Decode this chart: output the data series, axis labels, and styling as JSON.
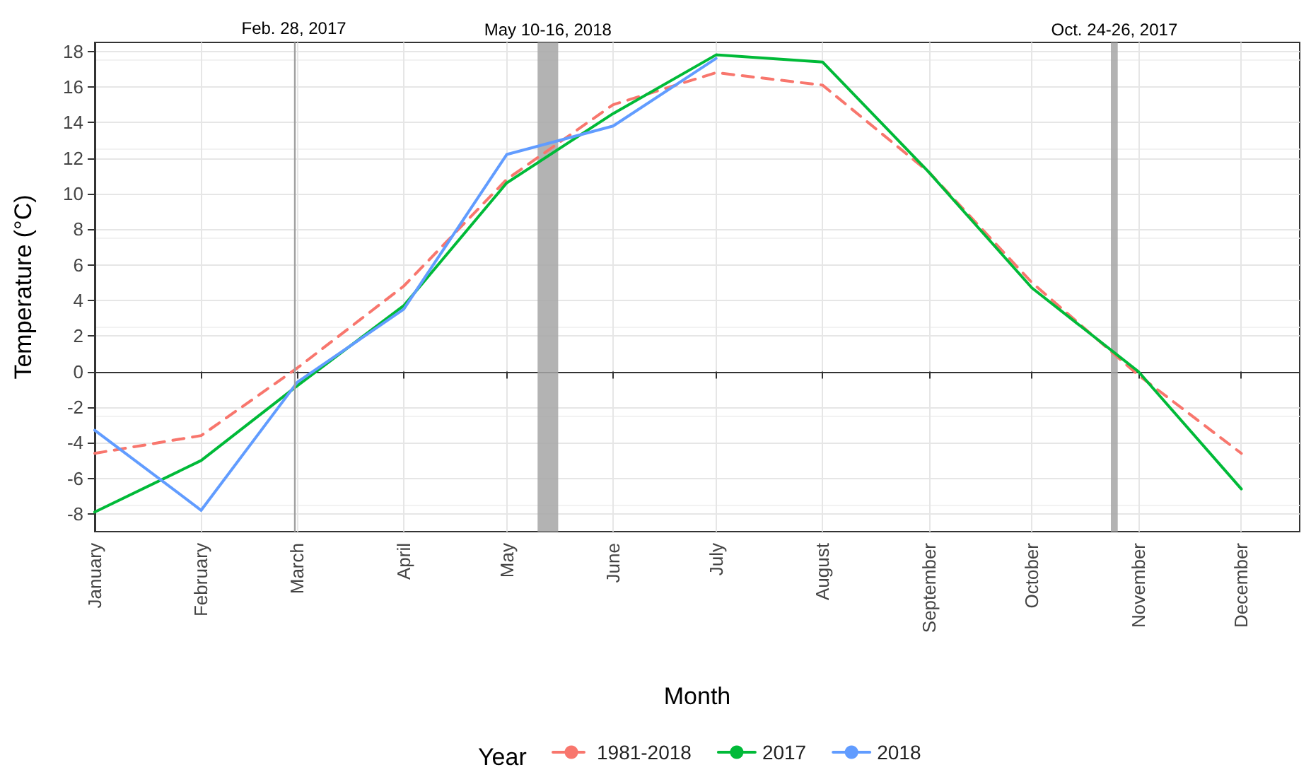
{
  "chart_data": {
    "type": "line",
    "xlabel": "Month",
    "ylabel": "Temperature (°C)",
    "legend_title": "Year",
    "x": [
      "--01-01",
      "--02-01",
      "--03-01",
      "--04-01",
      "--05-01",
      "--06-01",
      "--07-01",
      "--08-01",
      "--09-01",
      "--10-01",
      "--11-01",
      "--12-01"
    ],
    "xlim": [
      "--01-01",
      "--12-18"
    ],
    "xticks": [
      {
        "value": "--01-01",
        "label": "January"
      },
      {
        "value": "--02-01",
        "label": "February"
      },
      {
        "value": "--03-01",
        "label": "March"
      },
      {
        "value": "--04-01",
        "label": "April"
      },
      {
        "value": "--05-01",
        "label": "May"
      },
      {
        "value": "--06-01",
        "label": "June"
      },
      {
        "value": "--07-01",
        "label": "July"
      },
      {
        "value": "--08-01",
        "label": "August"
      },
      {
        "value": "--09-01",
        "label": "September"
      },
      {
        "value": "--10-01",
        "label": "October"
      },
      {
        "value": "--11-01",
        "label": "November"
      },
      {
        "value": "--12-01",
        "label": "December"
      }
    ],
    "ylim": [
      -9,
      18.5
    ],
    "yticks": [
      -8,
      -6,
      -4,
      -2,
      0,
      2,
      4,
      6,
      8,
      10,
      12,
      14,
      16,
      18
    ],
    "series": [
      {
        "name": "1981-2018",
        "color": "#f8766d",
        "line_style": "dashed",
        "values": [
          -4.6,
          -3.6,
          0.2,
          4.8,
          10.8,
          15.0,
          16.8,
          16.1,
          11.2,
          5.0,
          -0.2,
          -4.6
        ]
      },
      {
        "name": "2017",
        "color": "#00ba38",
        "line_style": "solid",
        "values": [
          -7.9,
          -5.0,
          -0.8,
          3.7,
          10.6,
          14.5,
          17.8,
          17.4,
          11.2,
          4.7,
          0.0,
          -6.6
        ]
      },
      {
        "name": "2018",
        "color": "#619cff",
        "line_style": "solid",
        "values": [
          -3.3,
          -7.8,
          -0.6,
          3.5,
          12.2,
          13.8,
          17.6,
          null,
          null,
          null,
          null,
          null
        ]
      }
    ],
    "ref_lines": [
      {
        "axis": "x",
        "value": "--02-28",
        "label": "Feb. 28, 2017",
        "color": "#a0a0a0"
      }
    ],
    "bands": [
      {
        "axis": "x",
        "from": "--05-10",
        "to": "--05-16",
        "label": "May 10-16, 2018",
        "color": "#a6a6a6"
      },
      {
        "axis": "x",
        "from": "--10-24",
        "to": "--10-26",
        "label": "Oct. 24-26, 2017",
        "color": "#a6a6a6"
      }
    ],
    "grid": true,
    "legend": "bottom",
    "marker": "none"
  }
}
